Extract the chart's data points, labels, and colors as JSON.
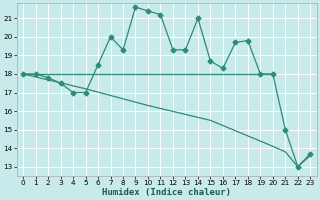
{
  "xlabel": "Humidex (Indice chaleur)",
  "bg_color": "#c8eaea",
  "grid_color": "#ffffff",
  "line_color": "#2e8b74",
  "xlim": [
    -0.5,
    23.5
  ],
  "ylim": [
    12.5,
    21.8
  ],
  "xticks": [
    0,
    1,
    2,
    3,
    4,
    5,
    6,
    7,
    8,
    9,
    10,
    11,
    12,
    13,
    14,
    15,
    16,
    17,
    18,
    19,
    20,
    21,
    22,
    23
  ],
  "yticks": [
    13,
    14,
    15,
    16,
    17,
    18,
    19,
    20,
    21
  ],
  "series1_x": [
    0,
    1,
    2,
    3,
    4,
    5,
    6,
    7,
    8,
    9,
    10,
    11,
    12,
    13,
    14,
    15,
    16,
    17,
    18,
    19,
    20,
    21,
    22,
    23
  ],
  "series1_y": [
    18,
    18,
    17.8,
    17.5,
    17.0,
    17.0,
    18.5,
    20.0,
    19.3,
    21.6,
    21.4,
    21.2,
    19.3,
    19.3,
    21.0,
    18.7,
    18.3,
    19.7,
    19.8,
    18.0,
    18.0,
    15.0,
    13.0,
    13.7
  ],
  "series2_x": [
    0,
    20
  ],
  "series2_y": [
    18,
    18
  ],
  "series3_x": [
    0,
    5,
    10,
    15,
    20,
    21,
    22,
    23
  ],
  "series3_y": [
    18,
    17.2,
    16.3,
    15.5,
    14.1,
    13.8,
    13.0,
    13.6
  ],
  "marker_size": 2.5,
  "line_width": 0.9,
  "tick_fontsize": 5.2,
  "xlabel_fontsize": 6.5
}
